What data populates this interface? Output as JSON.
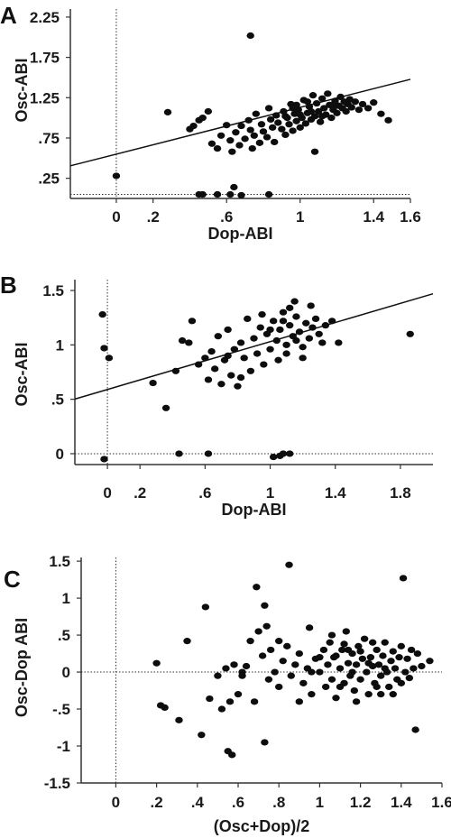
{
  "chart_data": [
    {
      "type": "scatter",
      "panel_label": "A",
      "xlabel": "Dop-ABI",
      "ylabel": "Osc-ABI",
      "xlim": [
        -0.25,
        1.6
      ],
      "ylim": [
        0.0,
        2.35
      ],
      "x_ticks": [
        {
          "v": 0,
          "label": "0"
        },
        {
          "v": 0.2,
          "label": ".2"
        },
        {
          "v": 0.6,
          "label": ".6"
        },
        {
          "v": 1,
          "label": "1"
        },
        {
          "v": 1.4,
          "label": "1.4"
        },
        {
          "v": 1.6,
          "label": "1.6"
        }
      ],
      "y_ticks": [
        {
          "v": 0.25,
          "label": ".25"
        },
        {
          "v": 0.75,
          "label": ".75"
        },
        {
          "v": 1.25,
          "label": "1.25"
        },
        {
          "v": 1.75,
          "label": "1.75"
        },
        {
          "v": 2.25,
          "label": "2.25"
        }
      ],
      "ref_x": 0,
      "ref_y": 0.05,
      "fit_line": {
        "intercept": 0.55,
        "slope": 0.58
      },
      "points": [
        [
          0.0,
          0.28
        ],
        [
          0.28,
          1.07
        ],
        [
          0.45,
          0.05
        ],
        [
          0.47,
          0.05
        ],
        [
          0.55,
          0.05
        ],
        [
          0.62,
          0.05
        ],
        [
          0.64,
          0.14
        ],
        [
          0.68,
          0.04
        ],
        [
          0.83,
          0.05
        ],
        [
          0.73,
          2.02
        ],
        [
          0.4,
          0.86
        ],
        [
          0.42,
          0.9
        ],
        [
          0.45,
          0.97
        ],
        [
          0.47,
          1.0
        ],
        [
          0.5,
          1.08
        ],
        [
          0.52,
          0.68
        ],
        [
          0.55,
          0.62
        ],
        [
          0.57,
          0.78
        ],
        [
          0.6,
          0.91
        ],
        [
          0.62,
          0.72
        ],
        [
          0.63,
          0.58
        ],
        [
          0.65,
          0.82
        ],
        [
          0.67,
          0.66
        ],
        [
          0.68,
          0.9
        ],
        [
          0.7,
          0.74
        ],
        [
          0.72,
          0.97
        ],
        [
          0.73,
          0.85
        ],
        [
          0.74,
          0.62
        ],
        [
          0.75,
          0.78
        ],
        [
          0.76,
          1.05
        ],
        [
          0.78,
          0.69
        ],
        [
          0.79,
          0.92
        ],
        [
          0.8,
          0.83
        ],
        [
          0.82,
          0.76
        ],
        [
          0.83,
          1.12
        ],
        [
          0.84,
          0.98
        ],
        [
          0.85,
          0.88
        ],
        [
          0.86,
          0.7
        ],
        [
          0.87,
          1.03
        ],
        [
          0.88,
          0.94
        ],
        [
          0.9,
          0.86
        ],
        [
          0.91,
          1.08
        ],
        [
          0.92,
          0.79
        ],
        [
          0.93,
          1.0
        ],
        [
          0.94,
          0.92
        ],
        [
          0.95,
          1.17
        ],
        [
          0.96,
          0.84
        ],
        [
          0.97,
          1.05
        ],
        [
          0.98,
          0.96
        ],
        [
          0.99,
          1.1
        ],
        [
          1.0,
          0.88
        ],
        [
          1.01,
          1.0
        ],
        [
          1.02,
          1.22
        ],
        [
          1.03,
          0.93
        ],
        [
          1.04,
          1.06
        ],
        [
          1.05,
          1.14
        ],
        [
          1.06,
          0.98
        ],
        [
          1.07,
          1.28
        ],
        [
          1.08,
          1.02
        ],
        [
          1.09,
          1.18
        ],
        [
          1.1,
          1.08
        ],
        [
          1.11,
          0.95
        ],
        [
          1.12,
          1.24
        ],
        [
          1.13,
          1.12
        ],
        [
          1.14,
          1.04
        ],
        [
          1.15,
          1.3
        ],
        [
          1.16,
          1.16
        ],
        [
          1.17,
          1.0
        ],
        [
          1.18,
          1.1
        ],
        [
          1.19,
          1.21
        ],
        [
          1.2,
          1.06
        ],
        [
          1.21,
          1.15
        ],
        [
          1.22,
          1.26
        ],
        [
          1.23,
          1.12
        ],
        [
          1.24,
          1.2
        ],
        [
          1.25,
          1.08
        ],
        [
          1.26,
          1.17
        ],
        [
          1.27,
          1.23
        ],
        [
          1.28,
          1.13
        ],
        [
          1.3,
          1.2
        ],
        [
          1.32,
          1.1
        ],
        [
          1.34,
          1.17
        ],
        [
          1.37,
          1.12
        ],
        [
          1.4,
          1.19
        ],
        [
          1.44,
          1.05
        ],
        [
          1.08,
          0.58
        ],
        [
          0.98,
          1.16
        ],
        [
          1.04,
          1.2
        ],
        [
          1.0,
          1.04
        ],
        [
          0.96,
          1.12
        ],
        [
          0.92,
          1.02
        ],
        [
          1.06,
          1.08
        ],
        [
          1.12,
          1.02
        ],
        [
          1.18,
          1.16
        ],
        [
          1.48,
          0.97
        ]
      ]
    },
    {
      "type": "scatter",
      "panel_label": "B",
      "xlabel": "Dop-ABI",
      "ylabel": "Osc-ABI",
      "xlim": [
        -0.2,
        2.0
      ],
      "ylim": [
        -0.1,
        1.6
      ],
      "x_ticks": [
        {
          "v": 0,
          "label": "0"
        },
        {
          "v": 0.2,
          "label": ".2"
        },
        {
          "v": 0.6,
          "label": ".6"
        },
        {
          "v": 1,
          "label": "1"
        },
        {
          "v": 1.4,
          "label": "1.4"
        },
        {
          "v": 1.8,
          "label": "1.8"
        }
      ],
      "y_ticks": [
        {
          "v": 0,
          "label": "0"
        },
        {
          "v": 0.5,
          "label": ".5"
        },
        {
          "v": 1,
          "label": "1"
        },
        {
          "v": 1.5,
          "label": "1.5"
        }
      ],
      "ref_x": 0,
      "ref_y": 0,
      "fit_line": {
        "intercept": 0.59,
        "slope": 0.44
      },
      "points": [
        [
          -0.03,
          1.28
        ],
        [
          -0.02,
          0.97
        ],
        [
          0.01,
          0.88
        ],
        [
          -0.02,
          -0.05
        ],
        [
          0.44,
          0.0
        ],
        [
          0.62,
          0.0
        ],
        [
          1.02,
          -0.03
        ],
        [
          1.06,
          -0.02
        ],
        [
          1.08,
          0.0
        ],
        [
          1.12,
          0.0
        ],
        [
          0.28,
          0.65
        ],
        [
          0.36,
          0.42
        ],
        [
          0.42,
          0.76
        ],
        [
          0.46,
          1.04
        ],
        [
          0.5,
          1.02
        ],
        [
          0.52,
          1.22
        ],
        [
          0.56,
          0.82
        ],
        [
          0.6,
          0.88
        ],
        [
          0.62,
          0.68
        ],
        [
          0.64,
          0.94
        ],
        [
          0.66,
          0.78
        ],
        [
          0.68,
          1.08
        ],
        [
          0.7,
          0.64
        ],
        [
          0.72,
          0.86
        ],
        [
          0.74,
          1.14
        ],
        [
          0.76,
          0.72
        ],
        [
          0.78,
          0.96
        ],
        [
          0.8,
          0.62
        ],
        [
          0.82,
          1.02
        ],
        [
          0.84,
          0.88
        ],
        [
          0.86,
          1.24
        ],
        [
          0.88,
          0.76
        ],
        [
          0.9,
          1.06
        ],
        [
          0.92,
          0.92
        ],
        [
          0.94,
          1.16
        ],
        [
          0.96,
          0.82
        ],
        [
          0.98,
          1.1
        ],
        [
          1.0,
          0.96
        ],
        [
          1.02,
          1.22
        ],
        [
          1.04,
          1.04
        ],
        [
          1.06,
          1.14
        ],
        [
          1.08,
          1.3
        ],
        [
          1.1,
          1.0
        ],
        [
          1.12,
          1.18
        ],
        [
          1.14,
          1.08
        ],
        [
          1.16,
          1.26
        ],
        [
          1.18,
          1.12
        ],
        [
          1.2,
          0.98
        ],
        [
          1.22,
          1.2
        ],
        [
          1.24,
          1.06
        ],
        [
          1.26,
          1.16
        ],
        [
          1.28,
          1.24
        ],
        [
          1.3,
          1.1
        ],
        [
          1.32,
          1.02
        ],
        [
          1.34,
          1.18
        ],
        [
          1.38,
          1.22
        ],
        [
          1.42,
          1.02
        ],
        [
          1.05,
          0.86
        ],
        [
          1.1,
          0.92
        ],
        [
          1.15,
          1.4
        ],
        [
          1.12,
          1.34
        ],
        [
          0.95,
          1.28
        ],
        [
          1.25,
          1.36
        ],
        [
          1.2,
          0.88
        ],
        [
          1.0,
          1.14
        ],
        [
          1.08,
          1.22
        ],
        [
          1.16,
          1.04
        ],
        [
          0.82,
          0.7
        ],
        [
          0.74,
          0.9
        ],
        [
          1.86,
          1.1
        ]
      ]
    },
    {
      "type": "scatter",
      "panel_label": "C",
      "xlabel": "(Osc+Dop)/2",
      "ylabel": "Osc-Dop ABI",
      "xlim": [
        -0.17,
        1.6
      ],
      "ylim": [
        -1.5,
        1.55
      ],
      "x_ticks": [
        {
          "v": 0,
          "label": "0"
        },
        {
          "v": 0.2,
          "label": ".2"
        },
        {
          "v": 0.4,
          "label": ".4"
        },
        {
          "v": 0.6,
          "label": ".6"
        },
        {
          "v": 0.8,
          "label": ".8"
        },
        {
          "v": 1,
          "label": "1"
        },
        {
          "v": 1.2,
          "label": "1.2"
        },
        {
          "v": 1.4,
          "label": "1.4"
        },
        {
          "v": 1.6,
          "label": "1.6"
        }
      ],
      "y_ticks": [
        {
          "v": 1.5,
          "label": "1.5"
        },
        {
          "v": 1,
          "label": "1"
        },
        {
          "v": 0.5,
          "label": ".5"
        },
        {
          "v": 0,
          "label": "0"
        },
        {
          "v": -0.5,
          "label": "-.5"
        },
        {
          "v": -1,
          "label": "-1"
        },
        {
          "v": -1.5,
          "label": "-1.5"
        }
      ],
      "ref_x": 0,
      "ref_y": 0,
      "points": [
        [
          0.2,
          0.12
        ],
        [
          0.22,
          -0.45
        ],
        [
          0.24,
          -0.48
        ],
        [
          0.31,
          -0.65
        ],
        [
          0.35,
          0.42
        ],
        [
          0.42,
          -0.85
        ],
        [
          0.44,
          0.88
        ],
        [
          0.46,
          -0.36
        ],
        [
          0.5,
          -0.05
        ],
        [
          0.52,
          -0.5
        ],
        [
          0.54,
          0.05
        ],
        [
          0.55,
          -1.07
        ],
        [
          0.57,
          -1.12
        ],
        [
          0.58,
          0.1
        ],
        [
          0.6,
          -0.3
        ],
        [
          0.62,
          -0.05
        ],
        [
          0.64,
          0.08
        ],
        [
          0.66,
          0.42
        ],
        [
          0.68,
          -0.4
        ],
        [
          0.69,
          1.15
        ],
        [
          0.7,
          0.55
        ],
        [
          0.72,
          0.22
        ],
        [
          0.73,
          0.9
        ],
        [
          0.74,
          0.62
        ],
        [
          0.75,
          -0.1
        ],
        [
          0.76,
          0.3
        ],
        [
          0.78,
          0.0
        ],
        [
          0.8,
          -0.2
        ],
        [
          0.82,
          0.15
        ],
        [
          0.84,
          0.35
        ],
        [
          0.85,
          1.45
        ],
        [
          0.86,
          -0.05
        ],
        [
          0.88,
          0.1
        ],
        [
          0.9,
          0.25
        ],
        [
          0.92,
          -0.15
        ],
        [
          0.94,
          0.05
        ],
        [
          0.95,
          0.6
        ],
        [
          0.96,
          -0.3
        ],
        [
          0.98,
          0.18
        ],
        [
          1.0,
          0.0
        ],
        [
          1.02,
          0.3
        ],
        [
          1.03,
          -0.2
        ],
        [
          1.04,
          0.1
        ],
        [
          1.05,
          0.4
        ],
        [
          1.06,
          -0.1
        ],
        [
          1.07,
          0.2
        ],
        [
          1.08,
          -0.35
        ],
        [
          1.1,
          0.05
        ],
        [
          1.11,
          0.3
        ],
        [
          1.12,
          -0.15
        ],
        [
          1.13,
          0.55
        ],
        [
          1.14,
          0.12
        ],
        [
          1.15,
          -0.05
        ],
        [
          1.16,
          0.25
        ],
        [
          1.17,
          -0.25
        ],
        [
          1.18,
          0.1
        ],
        [
          1.19,
          0.35
        ],
        [
          1.2,
          -0.1
        ],
        [
          1.21,
          0.18
        ],
        [
          1.22,
          0.45
        ],
        [
          1.23,
          0.0
        ],
        [
          1.24,
          -0.3
        ],
        [
          1.25,
          0.2
        ],
        [
          1.26,
          0.08
        ],
        [
          1.27,
          -0.15
        ],
        [
          1.28,
          0.3
        ],
        [
          1.29,
          0.1
        ],
        [
          1.3,
          -0.05
        ],
        [
          1.31,
          0.22
        ],
        [
          1.32,
          0.4
        ],
        [
          1.33,
          0.0
        ],
        [
          1.34,
          -0.2
        ],
        [
          1.35,
          0.15
        ],
        [
          1.36,
          0.28
        ],
        [
          1.37,
          0.05
        ],
        [
          1.38,
          -0.1
        ],
        [
          1.39,
          0.2
        ],
        [
          1.4,
          0.35
        ],
        [
          1.41,
          1.27
        ],
        [
          1.42,
          0.0
        ],
        [
          1.43,
          0.18
        ],
        [
          1.44,
          -0.08
        ],
        [
          1.46,
          0.05
        ],
        [
          1.47,
          -0.78
        ],
        [
          1.48,
          0.25
        ],
        [
          1.5,
          0.08
        ],
        [
          1.54,
          0.15
        ],
        [
          1.08,
          0.22
        ],
        [
          1.12,
          0.38
        ],
        [
          1.16,
          0.0
        ],
        [
          1.2,
          0.28
        ],
        [
          1.24,
          0.12
        ],
        [
          1.28,
          -0.2
        ],
        [
          1.32,
          0.05
        ],
        [
          1.18,
          -0.4
        ],
        [
          1.1,
          -0.2
        ],
        [
          0.9,
          -0.4
        ],
        [
          1.06,
          0.5
        ],
        [
          1.26,
          0.4
        ],
        [
          1.36,
          -0.3
        ],
        [
          0.73,
          -0.95
        ],
        [
          0.62,
          0.0
        ],
        [
          0.56,
          -0.4
        ],
        [
          0.8,
          0.42
        ],
        [
          1.0,
          0.2
        ],
        [
          0.96,
          0.0
        ],
        [
          1.14,
          0.3
        ],
        [
          1.3,
          -0.3
        ],
        [
          1.4,
          -0.15
        ],
        [
          1.45,
          0.3
        ]
      ]
    }
  ]
}
